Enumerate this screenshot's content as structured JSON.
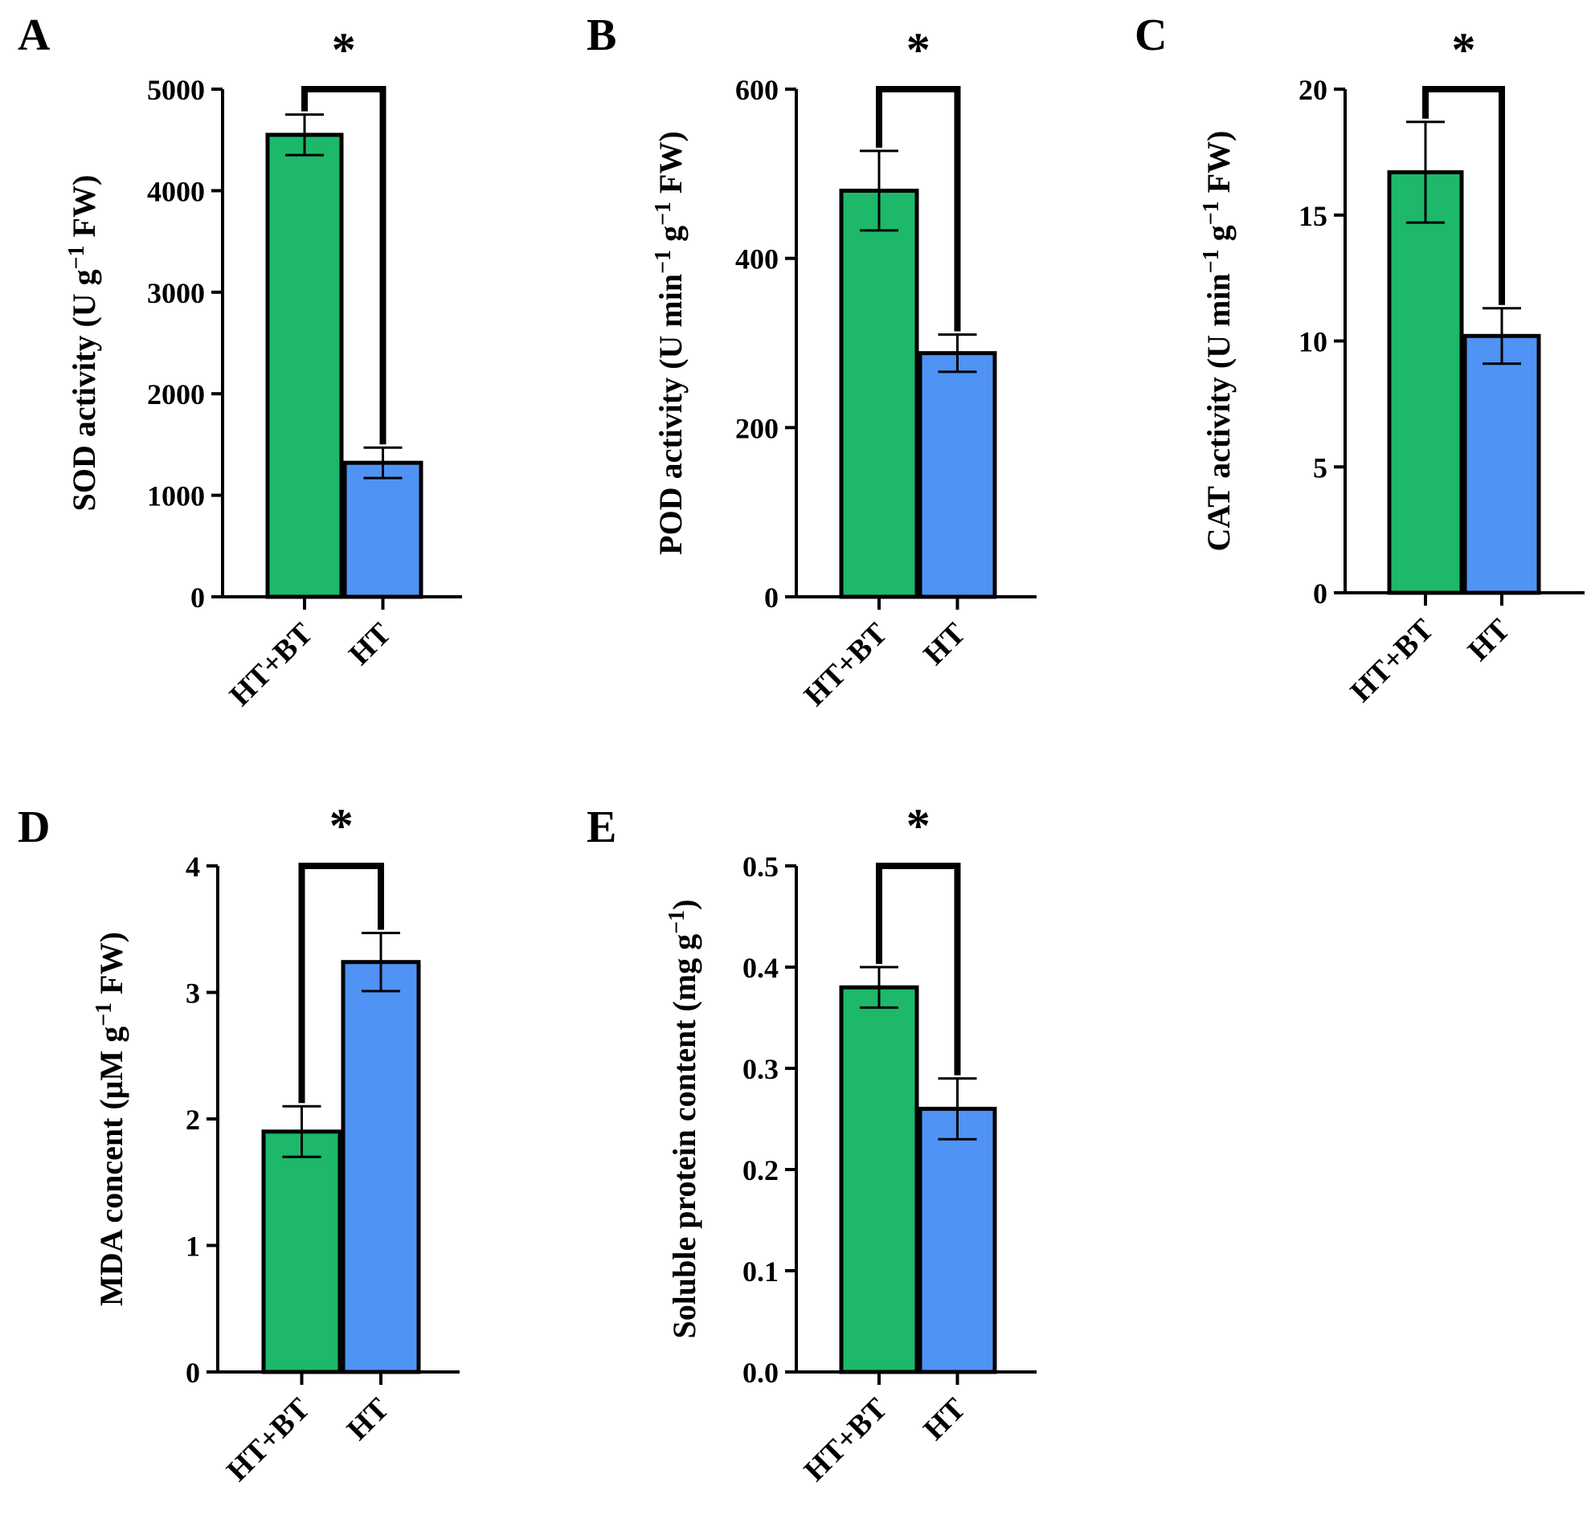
{
  "figure": {
    "background": "#ffffff"
  },
  "colors": {
    "HT+BT": "#1db86a",
    "HT": "#4f93f5",
    "axis": "#000000"
  },
  "chart_data": [
    {
      "id": "A",
      "panel_label": "A",
      "type": "bar",
      "ylabel_main": "SOD activity (U g",
      "ylabel_sup": "−1",
      "ylabel_tail": " FW)",
      "categories": [
        "HT+BT",
        "HT"
      ],
      "values": [
        4550,
        1320
      ],
      "errors": [
        200,
        150
      ],
      "ylim": [
        0,
        5000
      ],
      "yticks": [
        0,
        1000,
        2000,
        3000,
        4000,
        5000
      ],
      "yticklabels": [
        "0",
        "1000",
        "2000",
        "3000",
        "4000",
        "5000"
      ],
      "significance": "*"
    },
    {
      "id": "B",
      "panel_label": "B",
      "type": "bar",
      "ylabel_main": "POD activity (U min",
      "ylabel_sup": "−1",
      "ylabel_mid": " g",
      "ylabel_sup2": "−1",
      "ylabel_tail": " FW)",
      "categories": [
        "HT+BT",
        "HT"
      ],
      "values": [
        480,
        288
      ],
      "errors": [
        47,
        22
      ],
      "ylim": [
        0,
        600
      ],
      "yticks": [
        0,
        200,
        400,
        600
      ],
      "yticklabels": [
        "0",
        "200",
        "400",
        "600"
      ],
      "significance": "*"
    },
    {
      "id": "C",
      "panel_label": "C",
      "type": "bar",
      "ylabel_main": "CAT activity (U min",
      "ylabel_sup": "−1",
      "ylabel_mid": " g",
      "ylabel_sup2": "−1",
      "ylabel_tail": " FW)",
      "categories": [
        "HT+BT",
        "HT"
      ],
      "values": [
        16.7,
        10.2
      ],
      "errors": [
        2.0,
        1.1
      ],
      "ylim": [
        0,
        20
      ],
      "yticks": [
        0,
        5,
        10,
        15,
        20
      ],
      "yticklabels": [
        "0",
        "5",
        "10",
        "15",
        "20"
      ],
      "significance": "*"
    },
    {
      "id": "D",
      "panel_label": "D",
      "type": "bar",
      "ylabel_main": "MDA concent (μM g",
      "ylabel_sup": "−1",
      "ylabel_tail": " FW)",
      "categories": [
        "HT+BT",
        "HT"
      ],
      "values": [
        1.9,
        3.24
      ],
      "errors": [
        0.2,
        0.23
      ],
      "ylim": [
        0,
        4
      ],
      "yticks": [
        0,
        1,
        2,
        3,
        4
      ],
      "yticklabels": [
        "0",
        "1",
        "2",
        "3",
        "4"
      ],
      "significance": "*"
    },
    {
      "id": "E",
      "panel_label": "E",
      "type": "bar",
      "ylabel_main": "Soluble protein content (mg g",
      "ylabel_sup": "−1",
      "ylabel_tail": ")",
      "categories": [
        "HT+BT",
        "HT"
      ],
      "values": [
        0.38,
        0.26
      ],
      "errors": [
        0.02,
        0.03
      ],
      "ylim": [
        0,
        0.5
      ],
      "yticks": [
        0,
        0.1,
        0.2,
        0.3,
        0.4,
        0.5
      ],
      "yticklabels": [
        "0.0",
        "0.1",
        "0.2",
        "0.3",
        "0.4",
        "0.5"
      ],
      "significance": "*"
    }
  ]
}
